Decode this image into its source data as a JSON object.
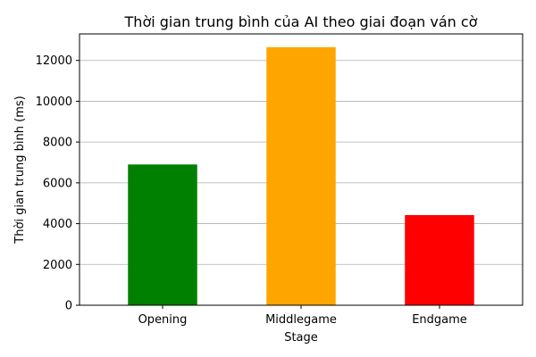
{
  "chart_data": {
    "type": "bar",
    "title": "Thời gian trung bình của AI theo giai đoạn ván cờ",
    "xlabel": "Stage",
    "ylabel": "Thời gian trung bình (ms)",
    "categories": [
      "Opening",
      "Middlegame",
      "Endgame"
    ],
    "values": [
      6900,
      12650,
      4420
    ],
    "colors": [
      "#008000",
      "#ffa500",
      "#ff0000"
    ],
    "ylim": [
      0,
      13300
    ],
    "yticks": [
      0,
      2000,
      4000,
      6000,
      8000,
      10000,
      12000
    ],
    "grid": "horizontal",
    "legend": "none"
  }
}
